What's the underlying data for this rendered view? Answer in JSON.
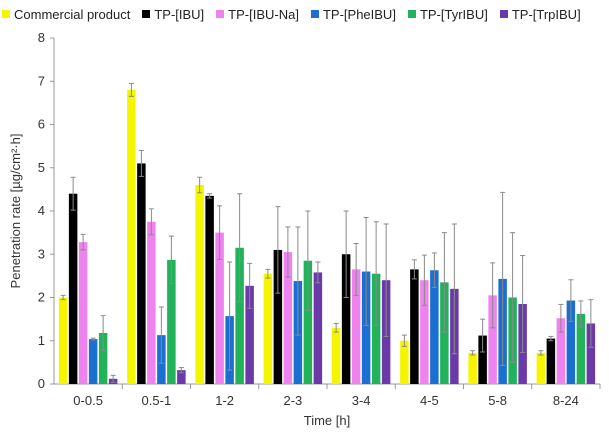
{
  "chart_data": {
    "type": "bar",
    "xlabel": "Time [h]",
    "ylabel": "Penetration rate [µg/cm²·h]",
    "ylim": [
      0,
      8
    ],
    "yticks": [
      "0",
      "1",
      "2",
      "3",
      "4",
      "5",
      "6",
      "7",
      "8"
    ],
    "categories": [
      "0-0.5",
      "0.5-1",
      "1-2",
      "2-3",
      "3-4",
      "4-5",
      "5-8",
      "8-24"
    ],
    "legend_position": "top",
    "grid": false,
    "series": [
      {
        "name": "Commercial product",
        "color": "#f5f500",
        "values": [
          2.0,
          6.8,
          4.6,
          2.55,
          1.3,
          1.0,
          0.72,
          0.72
        ],
        "errors": [
          0.05,
          0.15,
          0.18,
          0.1,
          0.1,
          0.13,
          0.05,
          0.05
        ]
      },
      {
        "name": "TP-[IBU]",
        "color": "#000000",
        "values": [
          4.4,
          5.1,
          4.35,
          3.1,
          3.0,
          2.65,
          1.12,
          1.05
        ],
        "errors": [
          0.38,
          0.3,
          0.05,
          1.0,
          1.0,
          0.22,
          0.38,
          0.05
        ]
      },
      {
        "name": "TP-[IBU-Na]",
        "color": "#ee82ee",
        "values": [
          3.28,
          3.75,
          3.5,
          3.05,
          2.65,
          2.4,
          2.05,
          1.52
        ],
        "errors": [
          0.18,
          0.3,
          0.62,
          0.58,
          0.6,
          0.58,
          0.75,
          0.32
        ]
      },
      {
        "name": "TP-[PheIBU]",
        "color": "#1a6fd1",
        "values": [
          1.04,
          1.13,
          1.57,
          2.38,
          2.6,
          2.63,
          2.43,
          1.93
        ],
        "errors": [
          0.02,
          0.65,
          1.25,
          1.25,
          1.25,
          0.4,
          2.0,
          0.48
        ]
      },
      {
        "name": "TP-[TyrIBU]",
        "color": "#22b35a",
        "values": [
          1.18,
          2.87,
          3.15,
          2.85,
          2.55,
          2.35,
          2.0,
          1.62
        ],
        "errors": [
          0.4,
          0.55,
          1.25,
          1.15,
          1.2,
          1.15,
          1.5,
          0.3
        ]
      },
      {
        "name": "TP-[TrpIBU]",
        "color": "#6b3aa8",
        "values": [
          0.12,
          0.32,
          2.27,
          2.58,
          2.4,
          2.2,
          1.85,
          1.4
        ],
        "errors": [
          0.08,
          0.06,
          0.52,
          0.24,
          1.3,
          1.5,
          1.12,
          0.55
        ]
      }
    ]
  }
}
